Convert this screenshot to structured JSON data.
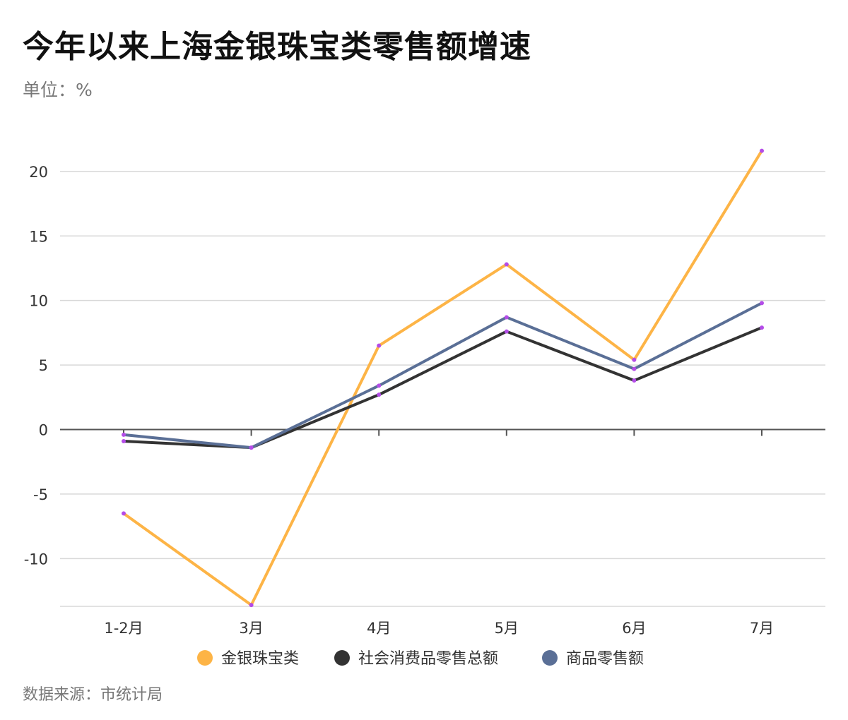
{
  "title": "今年以来上海金银珠宝类零售额增速",
  "unit": "单位：%",
  "source": "数据来源：市统计局",
  "colors": {
    "jewelry": "#FDB446",
    "total": "#333333",
    "goods": "#5A6F96",
    "point": "#B44CE8",
    "grid": "#D8D8D8",
    "zero_axis": "#555555"
  },
  "chart_data": {
    "type": "line",
    "categories": [
      "1-2月",
      "3月",
      "4月",
      "5月",
      "6月",
      "7月"
    ],
    "ylim": [
      -13.7,
      23
    ],
    "yticks": [
      -10,
      -5,
      0,
      5,
      10,
      15,
      20
    ],
    "grid": true,
    "legend_position": "bottom",
    "series": [
      {
        "name": "金银珠宝类",
        "color": "#FDB446",
        "values": [
          -6.5,
          -13.6,
          6.5,
          12.8,
          5.4,
          21.6
        ]
      },
      {
        "name": "社会消费品零售总额",
        "color": "#333333",
        "values": [
          -0.9,
          -1.4,
          2.7,
          7.6,
          3.8,
          7.9
        ]
      },
      {
        "name": "商品零售额",
        "color": "#5A6F96",
        "values": [
          -0.4,
          -1.4,
          3.4,
          8.7,
          4.7,
          9.8
        ]
      }
    ]
  }
}
